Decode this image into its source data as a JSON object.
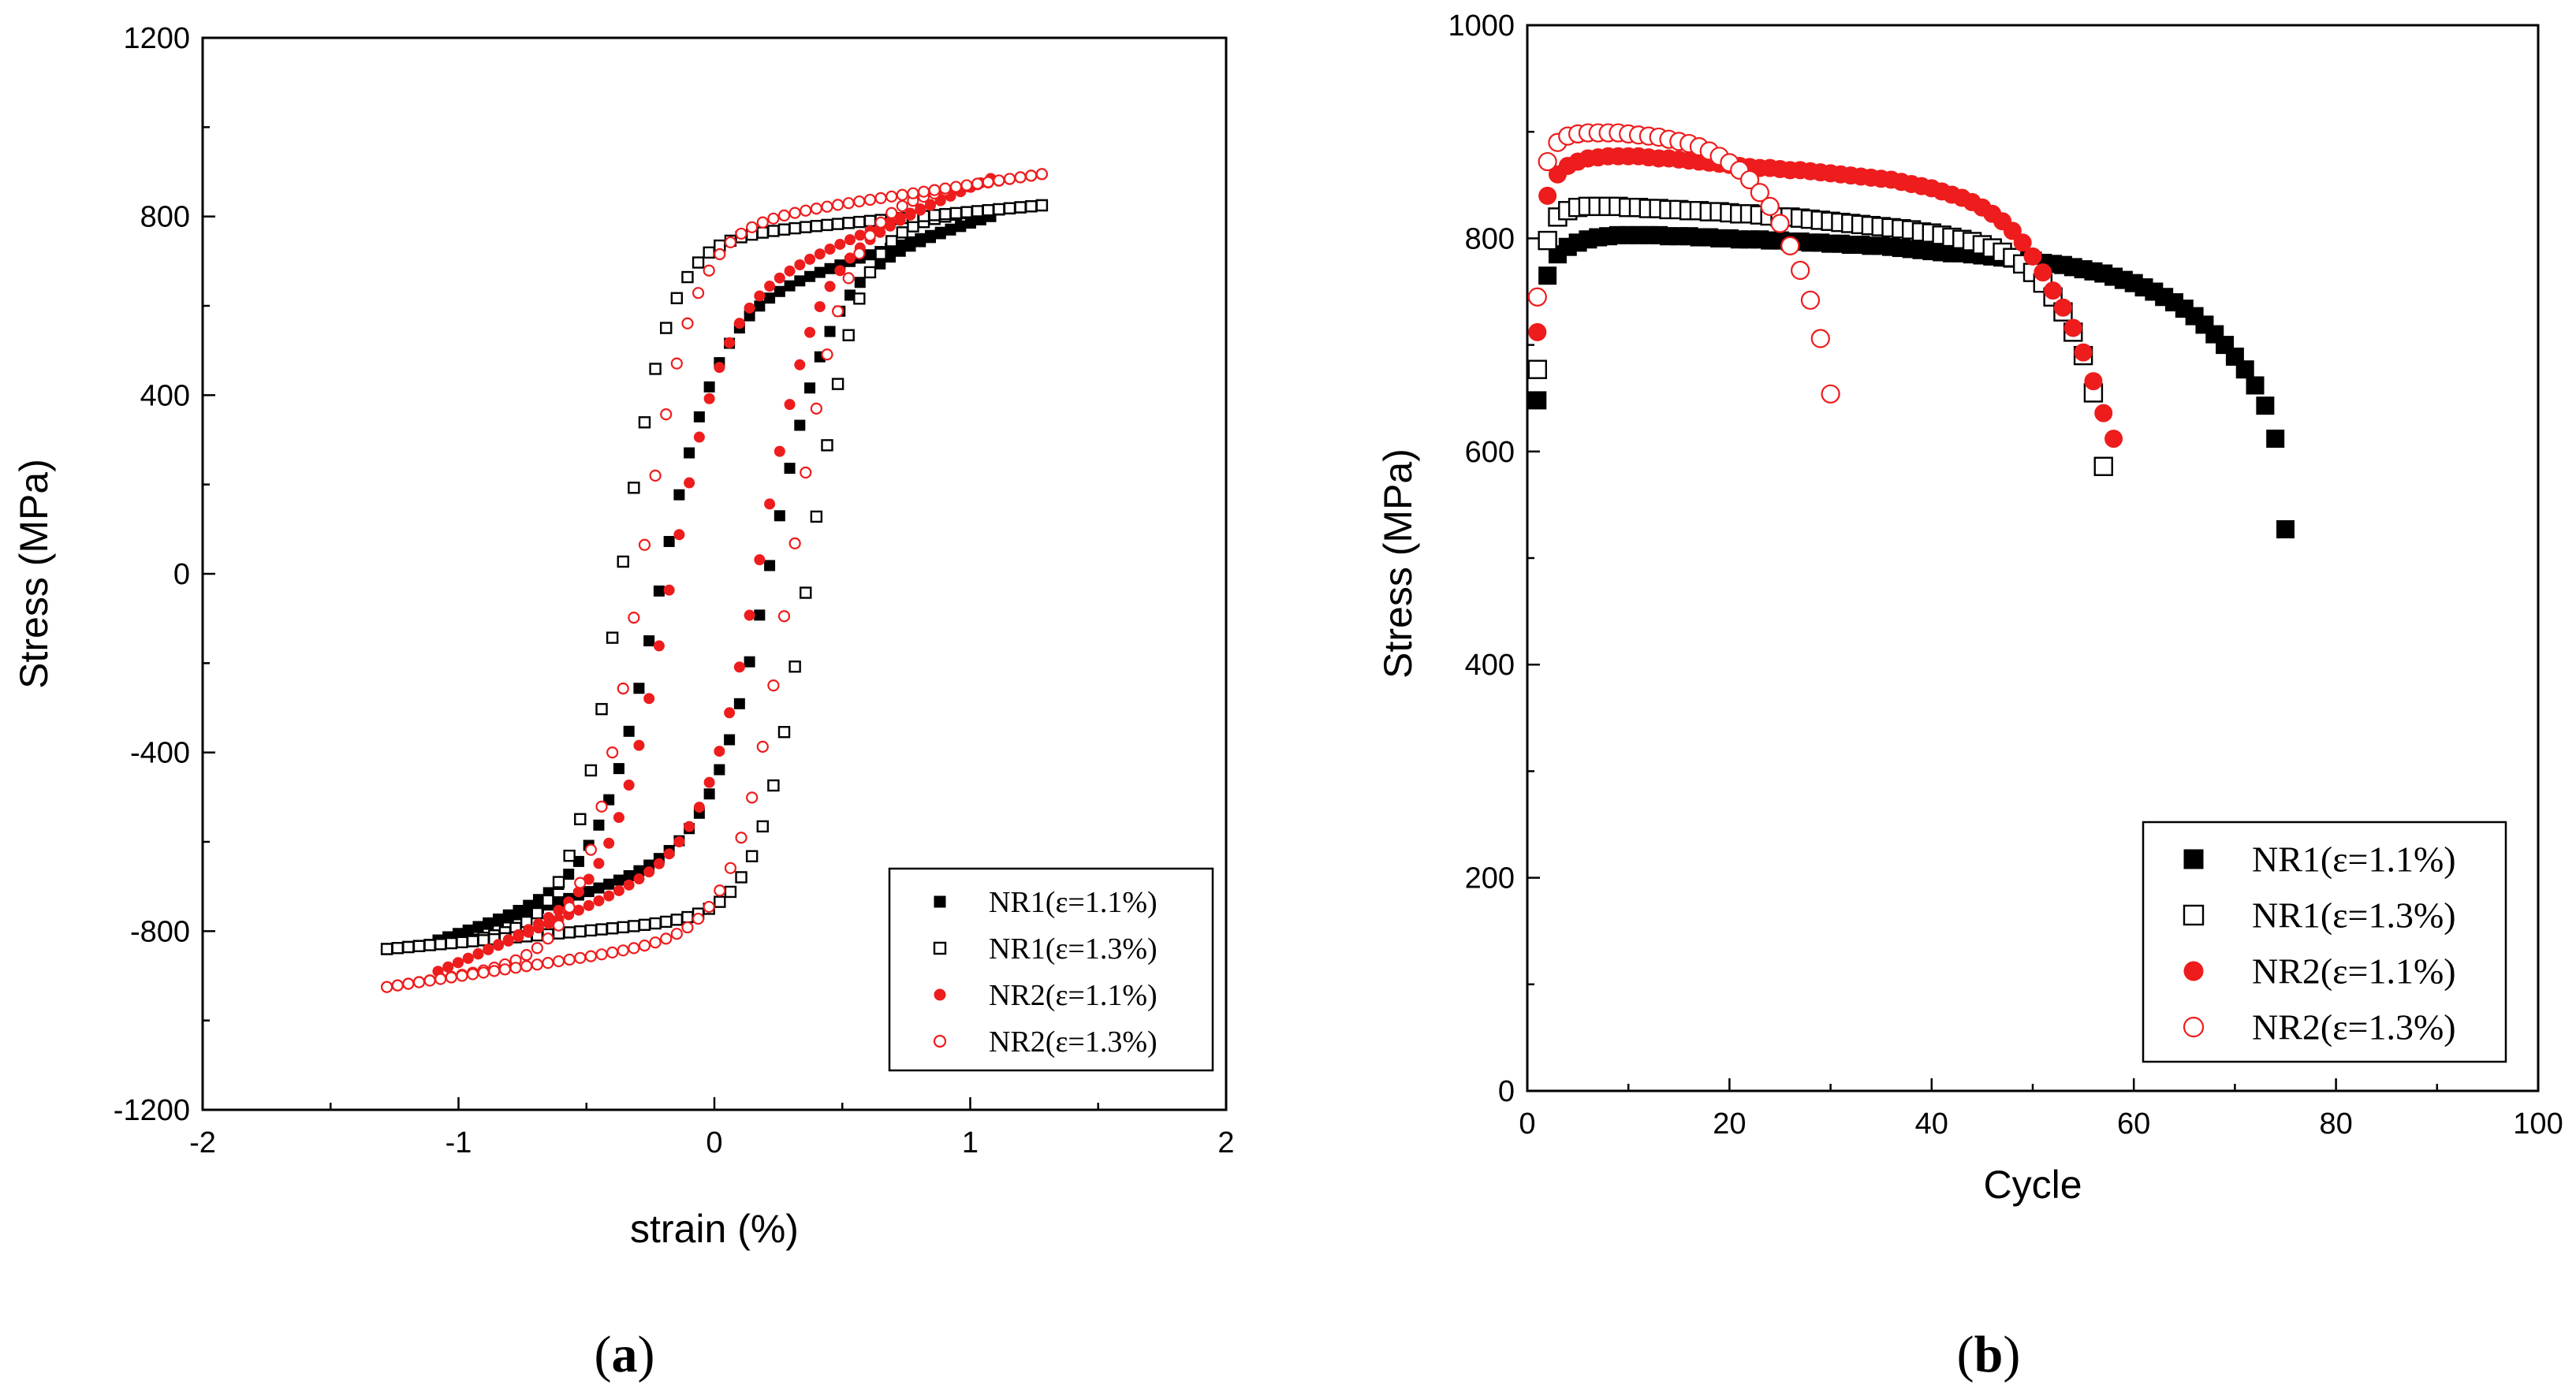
{
  "chart_data": [
    {
      "type": "scatter",
      "panel": "a",
      "panel_label": "a",
      "xlabel": "strain (%)",
      "ylabel": "Stress (MPa)",
      "xlim": [
        -2,
        2
      ],
      "ylim": [
        -1200,
        1200
      ],
      "xticks": [
        -2,
        -1,
        0,
        1,
        2
      ],
      "yticks": [
        -1200,
        -800,
        -400,
        0,
        400,
        800,
        1200
      ],
      "grid": false,
      "legend_position": "bottom-right",
      "series": [
        {
          "name": "NR1(ε=1.1%)",
          "marker": "square-filled",
          "color": "#000000",
          "loop": {
            "strain_amp": 1.08,
            "stress_max": 800,
            "stress_min": -820,
            "x0": 0.22,
            "k": 0.23,
            "c": 0.24,
            "n": 56
          }
        },
        {
          "name": "NR1(ε=1.3%)",
          "marker": "square-open",
          "color": "#000000",
          "loop": {
            "strain_amp": 1.28,
            "stress_max": 825,
            "stress_min": -840,
            "x0": 0.37,
            "k": 0.19,
            "c": 0.08,
            "n": 62
          }
        },
        {
          "name": "NR2(ε=1.1%)",
          "marker": "circle-filled",
          "color": "#ee1c1c",
          "loop": {
            "strain_amp": 1.08,
            "stress_max": 885,
            "stress_min": -890,
            "x0": 0.18,
            "k": 0.21,
            "c": 0.3,
            "n": 56
          }
        },
        {
          "name": "NR2(ε=1.3%)",
          "marker": "circle-open",
          "color": "#ee1c1c",
          "loop": {
            "strain_amp": 1.28,
            "stress_max": 895,
            "stress_min": -925,
            "x0": 0.3,
            "k": 0.21,
            "c": 0.12,
            "n": 62
          }
        }
      ]
    },
    {
      "type": "scatter",
      "panel": "b",
      "panel_label": "b",
      "xlabel": "Cycle",
      "ylabel": "Stress (MPa)",
      "xlim": [
        0,
        100
      ],
      "ylim": [
        0,
        1000
      ],
      "xticks": [
        0,
        20,
        40,
        60,
        80,
        100
      ],
      "yticks": [
        0,
        200,
        400,
        600,
        800,
        1000
      ],
      "grid": false,
      "legend_position": "bottom-right",
      "series": [
        {
          "name": "NR1(ε=1.1%)",
          "marker": "square-filled",
          "color": "#000000",
          "x": [
            1,
            2,
            3,
            4,
            5,
            6,
            7,
            8,
            9,
            10,
            11,
            12,
            13,
            14,
            15,
            16,
            17,
            18,
            19,
            20,
            21,
            22,
            23,
            24,
            25,
            26,
            27,
            28,
            29,
            30,
            31,
            32,
            33,
            34,
            35,
            36,
            37,
            38,
            39,
            40,
            41,
            42,
            43,
            44,
            45,
            46,
            47,
            48,
            49,
            50,
            51,
            52,
            53,
            54,
            55,
            56,
            57,
            58,
            59,
            60,
            61,
            62,
            63,
            64,
            65,
            66,
            67,
            68,
            69,
            70,
            71,
            72,
            73,
            74,
            75
          ],
          "y": [
            648,
            765,
            785,
            792,
            796,
            799,
            801,
            802,
            803,
            803,
            803,
            803,
            803,
            802,
            802,
            802,
            801,
            801,
            800,
            800,
            799,
            799,
            799,
            798,
            798,
            797,
            797,
            796,
            796,
            795,
            795,
            794,
            794,
            793,
            793,
            792,
            791,
            790,
            789,
            788,
            787,
            786,
            786,
            785,
            784,
            783,
            782,
            781,
            780,
            779,
            777,
            776,
            775,
            773,
            771,
            769,
            767,
            764,
            761,
            758,
            754,
            750,
            745,
            740,
            734,
            727,
            719,
            710,
            700,
            689,
            677,
            662,
            643,
            612,
            527
          ]
        },
        {
          "name": "NR1(ε=1.3%)",
          "marker": "square-open",
          "color": "#000000",
          "x": [
            1,
            2,
            3,
            4,
            5,
            6,
            7,
            8,
            9,
            10,
            11,
            12,
            13,
            14,
            15,
            16,
            17,
            18,
            19,
            20,
            21,
            22,
            23,
            24,
            25,
            26,
            27,
            28,
            29,
            30,
            31,
            32,
            33,
            34,
            35,
            36,
            37,
            38,
            39,
            40,
            41,
            42,
            43,
            44,
            45,
            46,
            47,
            48,
            49,
            50,
            51,
            52,
            53,
            54,
            55,
            56,
            57
          ],
          "y": [
            677,
            798,
            820,
            826,
            829,
            830,
            830,
            830,
            830,
            829,
            829,
            828,
            828,
            827,
            827,
            826,
            826,
            825,
            825,
            824,
            823,
            823,
            822,
            821,
            820,
            820,
            819,
            818,
            817,
            816,
            815,
            814,
            813,
            812,
            811,
            810,
            809,
            808,
            806,
            805,
            803,
            801,
            799,
            797,
            794,
            791,
            787,
            782,
            776,
            768,
            758,
            745,
            731,
            712,
            690,
            655,
            586
          ]
        },
        {
          "name": "NR2(ε=1.1%)",
          "marker": "circle-filled",
          "color": "#ee1c1c",
          "x": [
            1,
            2,
            3,
            4,
            5,
            6,
            7,
            8,
            9,
            10,
            11,
            12,
            13,
            14,
            15,
            16,
            17,
            18,
            19,
            20,
            21,
            22,
            23,
            24,
            25,
            26,
            27,
            28,
            29,
            30,
            31,
            32,
            33,
            34,
            35,
            36,
            37,
            38,
            39,
            40,
            41,
            42,
            43,
            44,
            45,
            46,
            47,
            48,
            49,
            50,
            51,
            52,
            53,
            54,
            55,
            56,
            57,
            58
          ],
          "y": [
            712,
            840,
            860,
            868,
            872,
            875,
            876,
            877,
            877,
            877,
            877,
            876,
            875,
            875,
            874,
            873,
            872,
            871,
            870,
            869,
            868,
            867,
            866,
            866,
            865,
            864,
            864,
            863,
            862,
            861,
            860,
            859,
            858,
            857,
            856,
            855,
            853,
            851,
            849,
            847,
            844,
            841,
            838,
            834,
            829,
            823,
            816,
            807,
            796,
            783,
            768,
            751,
            735,
            716,
            693,
            666,
            636,
            612
          ]
        },
        {
          "name": "NR2(ε=1.3%)",
          "marker": "circle-open",
          "color": "#ee1c1c",
          "x": [
            1,
            2,
            3,
            4,
            5,
            6,
            7,
            8,
            9,
            10,
            11,
            12,
            13,
            14,
            15,
            16,
            17,
            18,
            19,
            20,
            21,
            22,
            23,
            24,
            25,
            26,
            27,
            28,
            29,
            30
          ],
          "y": [
            745,
            872,
            890,
            896,
            898,
            899,
            899,
            899,
            899,
            898,
            897,
            896,
            895,
            893,
            891,
            889,
            886,
            882,
            877,
            871,
            864,
            855,
            843,
            830,
            814,
            793,
            770,
            742,
            706,
            654
          ]
        }
      ]
    }
  ]
}
